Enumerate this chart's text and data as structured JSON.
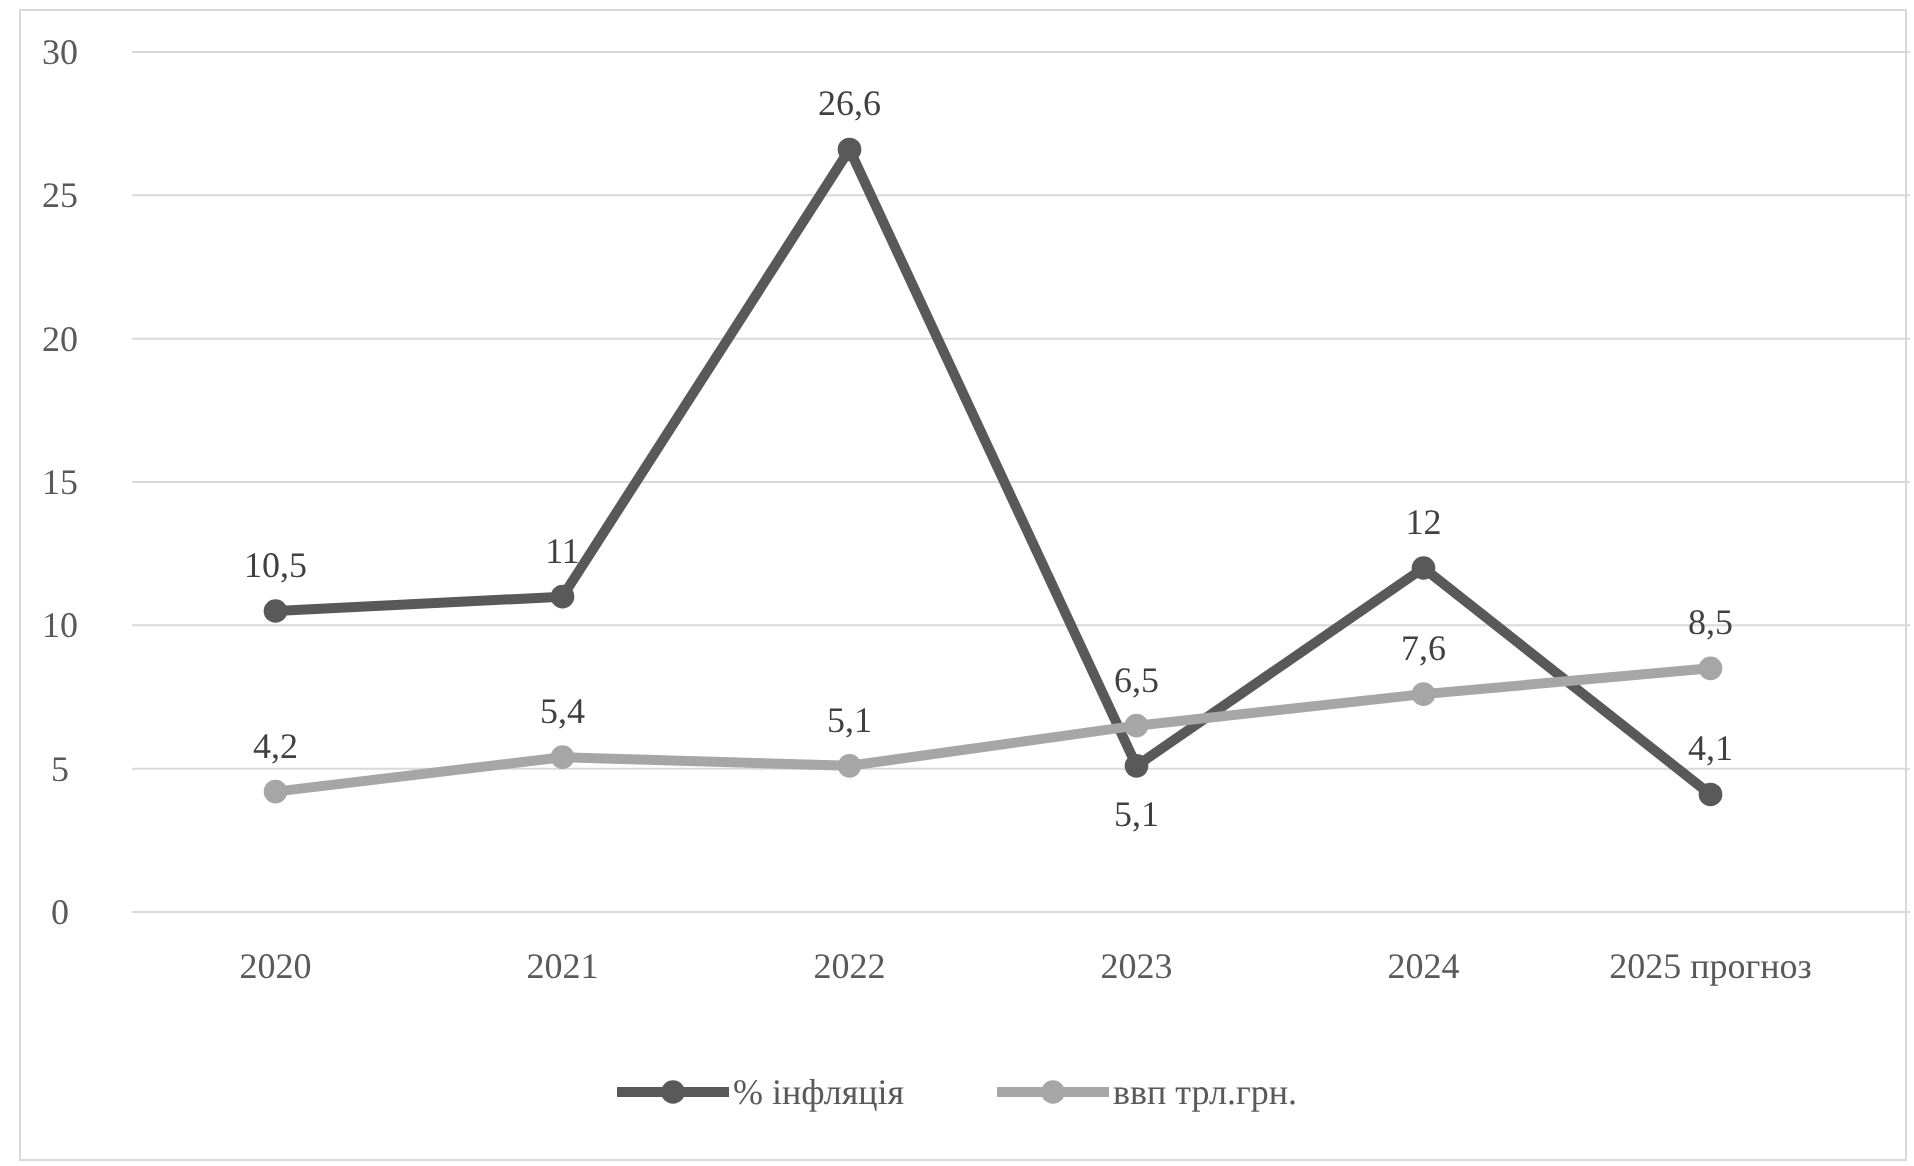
{
  "chart_data": {
    "type": "line",
    "categories": [
      "2020",
      "2021",
      "2022",
      "2023",
      "2024",
      "2025 прогноз"
    ],
    "series": [
      {
        "name": "% інфляція",
        "color": "#595959",
        "values": [
          10.5,
          11,
          26.6,
          5.1,
          12,
          4.1
        ],
        "value_labels": [
          "10,5",
          "11",
          "26,6",
          "5,1",
          "12",
          "4,1"
        ]
      },
      {
        "name": "ввп трл.грн.",
        "color": "#a6a6a6",
        "values": [
          4.2,
          5.4,
          5.1,
          6.5,
          7.6,
          8.5
        ],
        "value_labels": [
          "4,2",
          "5,4",
          "5,1",
          "6,5",
          "7,6",
          "8,5"
        ]
      }
    ],
    "ylim": [
      0,
      30
    ],
    "yticks": [
      0,
      5,
      10,
      15,
      20,
      25,
      30
    ],
    "grid": "y",
    "legend": "bottom",
    "marker": "circle",
    "line_style": "solid"
  }
}
